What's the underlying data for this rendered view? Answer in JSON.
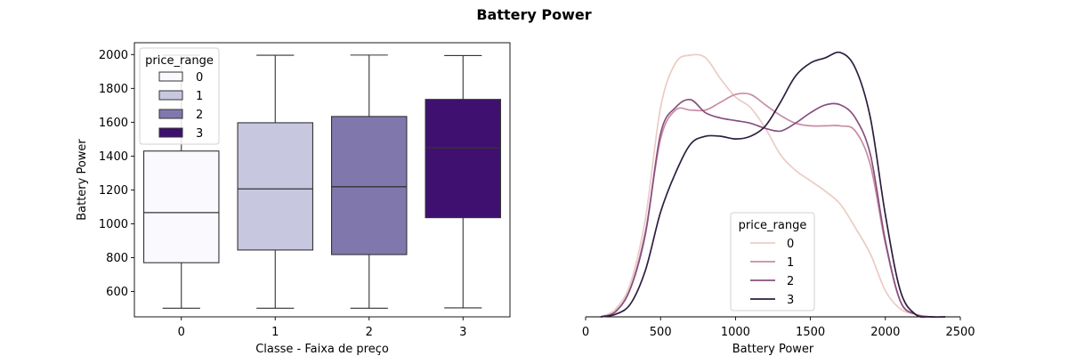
{
  "figure": {
    "title": "Battery Power"
  },
  "colors": {
    "box": [
      "#fafafe",
      "#c7c8df",
      "#8078ad",
      "#3f1070"
    ],
    "kde": [
      "#ebcbc4",
      "#c98ca6",
      "#87507f",
      "#2d1e3e"
    ],
    "edge": "#333333"
  },
  "chart_data": [
    {
      "type": "box",
      "title": "",
      "xlabel": "Classe - Faixa de preço",
      "ylabel": "Battery Power",
      "categories": [
        "0",
        "1",
        "2",
        "3"
      ],
      "ylim": [
        450,
        2070
      ],
      "yticks": [
        600,
        800,
        1000,
        1200,
        1400,
        1600,
        1800,
        2000
      ],
      "boxes": [
        {
          "category": "0",
          "whisker_low": 501,
          "q1": 770,
          "median": 1066,
          "q3": 1430,
          "whisker_high": 1996
        },
        {
          "category": "1",
          "whisker_low": 501,
          "q1": 845,
          "median": 1206,
          "q3": 1597,
          "whisker_high": 1996
        },
        {
          "category": "2",
          "whisker_low": 501,
          "q1": 818,
          "median": 1219,
          "q3": 1634,
          "whisker_high": 1997
        },
        {
          "category": "3",
          "whisker_low": 503,
          "q1": 1036,
          "median": 1449,
          "q3": 1735,
          "whisker_high": 1994
        }
      ],
      "legend": {
        "title": "price_range",
        "position": "upper left",
        "entries": [
          "0",
          "1",
          "2",
          "3"
        ]
      }
    },
    {
      "type": "line",
      "title": "",
      "xlabel": "Battery Power",
      "ylabel": "",
      "xlim": [
        0,
        2500
      ],
      "xticks": [
        0,
        500,
        1000,
        1500,
        2000,
        2500
      ],
      "x": [
        100,
        200,
        300,
        400,
        500,
        600,
        700,
        800,
        900,
        1000,
        1100,
        1200,
        1300,
        1400,
        1500,
        1600,
        1700,
        1800,
        1900,
        2000,
        2100,
        2200,
        2300,
        2400
      ],
      "series": [
        {
          "name": "0",
          "values": [
            0,
            0.03,
            0.13,
            0.38,
            0.8,
            0.97,
            1.0,
            0.99,
            0.91,
            0.84,
            0.8,
            0.72,
            0.62,
            0.56,
            0.52,
            0.48,
            0.43,
            0.34,
            0.24,
            0.1,
            0.03,
            0.01,
            0,
            0
          ]
        },
        {
          "name": "1",
          "values": [
            0,
            0.02,
            0.11,
            0.33,
            0.68,
            0.79,
            0.79,
            0.79,
            0.82,
            0.85,
            0.85,
            0.81,
            0.77,
            0.74,
            0.73,
            0.73,
            0.73,
            0.71,
            0.58,
            0.28,
            0.06,
            0.01,
            0,
            0
          ]
        },
        {
          "name": "2",
          "values": [
            0,
            0.02,
            0.11,
            0.32,
            0.7,
            0.8,
            0.83,
            0.78,
            0.76,
            0.75,
            0.74,
            0.72,
            0.71,
            0.74,
            0.78,
            0.81,
            0.81,
            0.76,
            0.62,
            0.29,
            0.06,
            0.01,
            0,
            0
          ]
        },
        {
          "name": "3",
          "values": [
            0,
            0.01,
            0.05,
            0.18,
            0.4,
            0.55,
            0.66,
            0.69,
            0.69,
            0.68,
            0.69,
            0.73,
            0.82,
            0.92,
            0.97,
            0.99,
            1.01,
            0.95,
            0.76,
            0.39,
            0.1,
            0.01,
            0,
            0
          ]
        }
      ],
      "legend": {
        "title": "price_range",
        "position": "lower center",
        "entries": [
          "0",
          "1",
          "2",
          "3"
        ]
      }
    }
  ]
}
